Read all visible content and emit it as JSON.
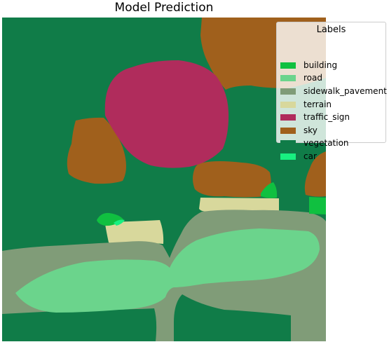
{
  "title": "Model Prediction",
  "legend": {
    "title": "Labels",
    "items": [
      {
        "label": "building",
        "color": "#10c040"
      },
      {
        "label": "road",
        "color": "#6bd48c"
      },
      {
        "label": "sidewalk_pavement",
        "color": "#809c78"
      },
      {
        "label": "terrain",
        "color": "#d8d89c"
      },
      {
        "label": "traffic_sign",
        "color": "#b02c5c"
      },
      {
        "label": "sky",
        "color": "#a0601c"
      },
      {
        "label": "vegetation",
        "color": "#107c48"
      },
      {
        "label": "car",
        "color": "#18f080"
      }
    ]
  },
  "segmentation": {
    "background_class": "vegetation",
    "regions": [
      {
        "class": "sky",
        "name": "sky-region-top-right"
      },
      {
        "class": "sky",
        "name": "sky-region-left"
      },
      {
        "class": "sky",
        "name": "sky-region-center"
      },
      {
        "class": "sky",
        "name": "sky-region-right-edge"
      },
      {
        "class": "traffic_sign",
        "name": "traffic-sign-region"
      },
      {
        "class": "terrain",
        "name": "terrain-region-center"
      },
      {
        "class": "terrain",
        "name": "terrain-region-left"
      },
      {
        "class": "sidewalk_pavement",
        "name": "sidewalk-region"
      },
      {
        "class": "road",
        "name": "road-region"
      },
      {
        "class": "building",
        "name": "building-region-center"
      },
      {
        "class": "building",
        "name": "building-region-left"
      },
      {
        "class": "building",
        "name": "building-region-right"
      },
      {
        "class": "car",
        "name": "car-region"
      }
    ]
  }
}
